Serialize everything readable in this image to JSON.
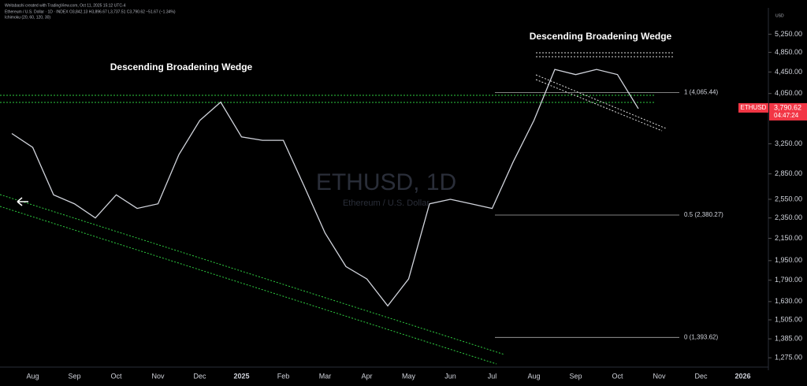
{
  "chart_data": {
    "type": "line",
    "source": "Weitabashi created with TradingView.com, Oct 11, 2025 15:12 UTC-4",
    "title": "Ethereum / U.S. Dollar · 1D · INDEX  O3,842.13 H3,896.67 L3,737.51 C3,790.62 −51.67 (−1.34%)",
    "indicator": "Ichimoku (20, 60, 120, 30)",
    "currency": "USD",
    "watermark": "ETHUSD, 1D",
    "watermark_subtitle": "Ethereum / U.S. Dollar",
    "annotations": [
      "Descending Broadening Wedge",
      "Descending Broadening Wedge"
    ],
    "categories": [
      null,
      "Aug",
      null,
      "Sep",
      null,
      "Oct",
      null,
      "Nov",
      null,
      "Dec",
      null,
      "2025",
      null,
      "Feb",
      null,
      "Mar",
      null,
      "Apr",
      null,
      "May",
      null,
      "Jun",
      null,
      "Jul",
      null,
      "Aug",
      null,
      "Sep",
      null,
      "Oct",
      null,
      "Nov",
      null,
      "Dec",
      null,
      "2026"
    ],
    "series": [
      {
        "name": "ETHUSD",
        "color": "#d1d4dc",
        "values": [
          3400,
          3200,
          2600,
          2500,
          2350,
          2600,
          2450,
          2500,
          3100,
          3600,
          3900,
          3350,
          3300,
          3300,
          2700,
          2200,
          1900,
          1800,
          1600,
          1800,
          2500,
          2550,
          2500,
          2450,
          3000,
          3600,
          4500,
          4400,
          4500,
          4400,
          3790.62,
          null,
          null,
          null,
          null,
          null
        ]
      }
    ],
    "last_price": {
      "symbol": "ETHUSD",
      "value": 3790.62,
      "label": "3,790.62",
      "countdown": "04:47:24",
      "color": "#f23645"
    },
    "fib_levels": [
      {
        "value": 4065.44,
        "label": "1 (4,065.44)"
      },
      {
        "value": 2380.27,
        "label": "0.5 (2,380.27)"
      },
      {
        "value": 1393.62,
        "label": "0 (1,393.62)"
      }
    ],
    "log_scale": true,
    "ylim": [
      1224,
      5850
    ],
    "yticks": [
      {
        "value": 5250,
        "label": "5,250.00"
      },
      {
        "value": 4850,
        "label": "4,850.00"
      },
      {
        "value": 4450,
        "label": "4,450.00"
      },
      {
        "value": 4050,
        "label": "4,050.00"
      },
      {
        "value": 3250,
        "label": "3,250.00"
      },
      {
        "value": 2850,
        "label": "2,850.00"
      },
      {
        "value": 2550,
        "label": "2,550.00"
      },
      {
        "value": 2350,
        "label": "2,350.00"
      },
      {
        "value": 2150,
        "label": "2,150.00"
      },
      {
        "value": 1950,
        "label": "1,950.00"
      },
      {
        "value": 1790,
        "label": "1,790.00"
      },
      {
        "value": 1630,
        "label": "1,630.00"
      },
      {
        "value": 1505,
        "label": "1,505.00"
      },
      {
        "value": 1385,
        "label": "1,385.00"
      },
      {
        "value": 1275,
        "label": "1,275.00"
      }
    ]
  }
}
